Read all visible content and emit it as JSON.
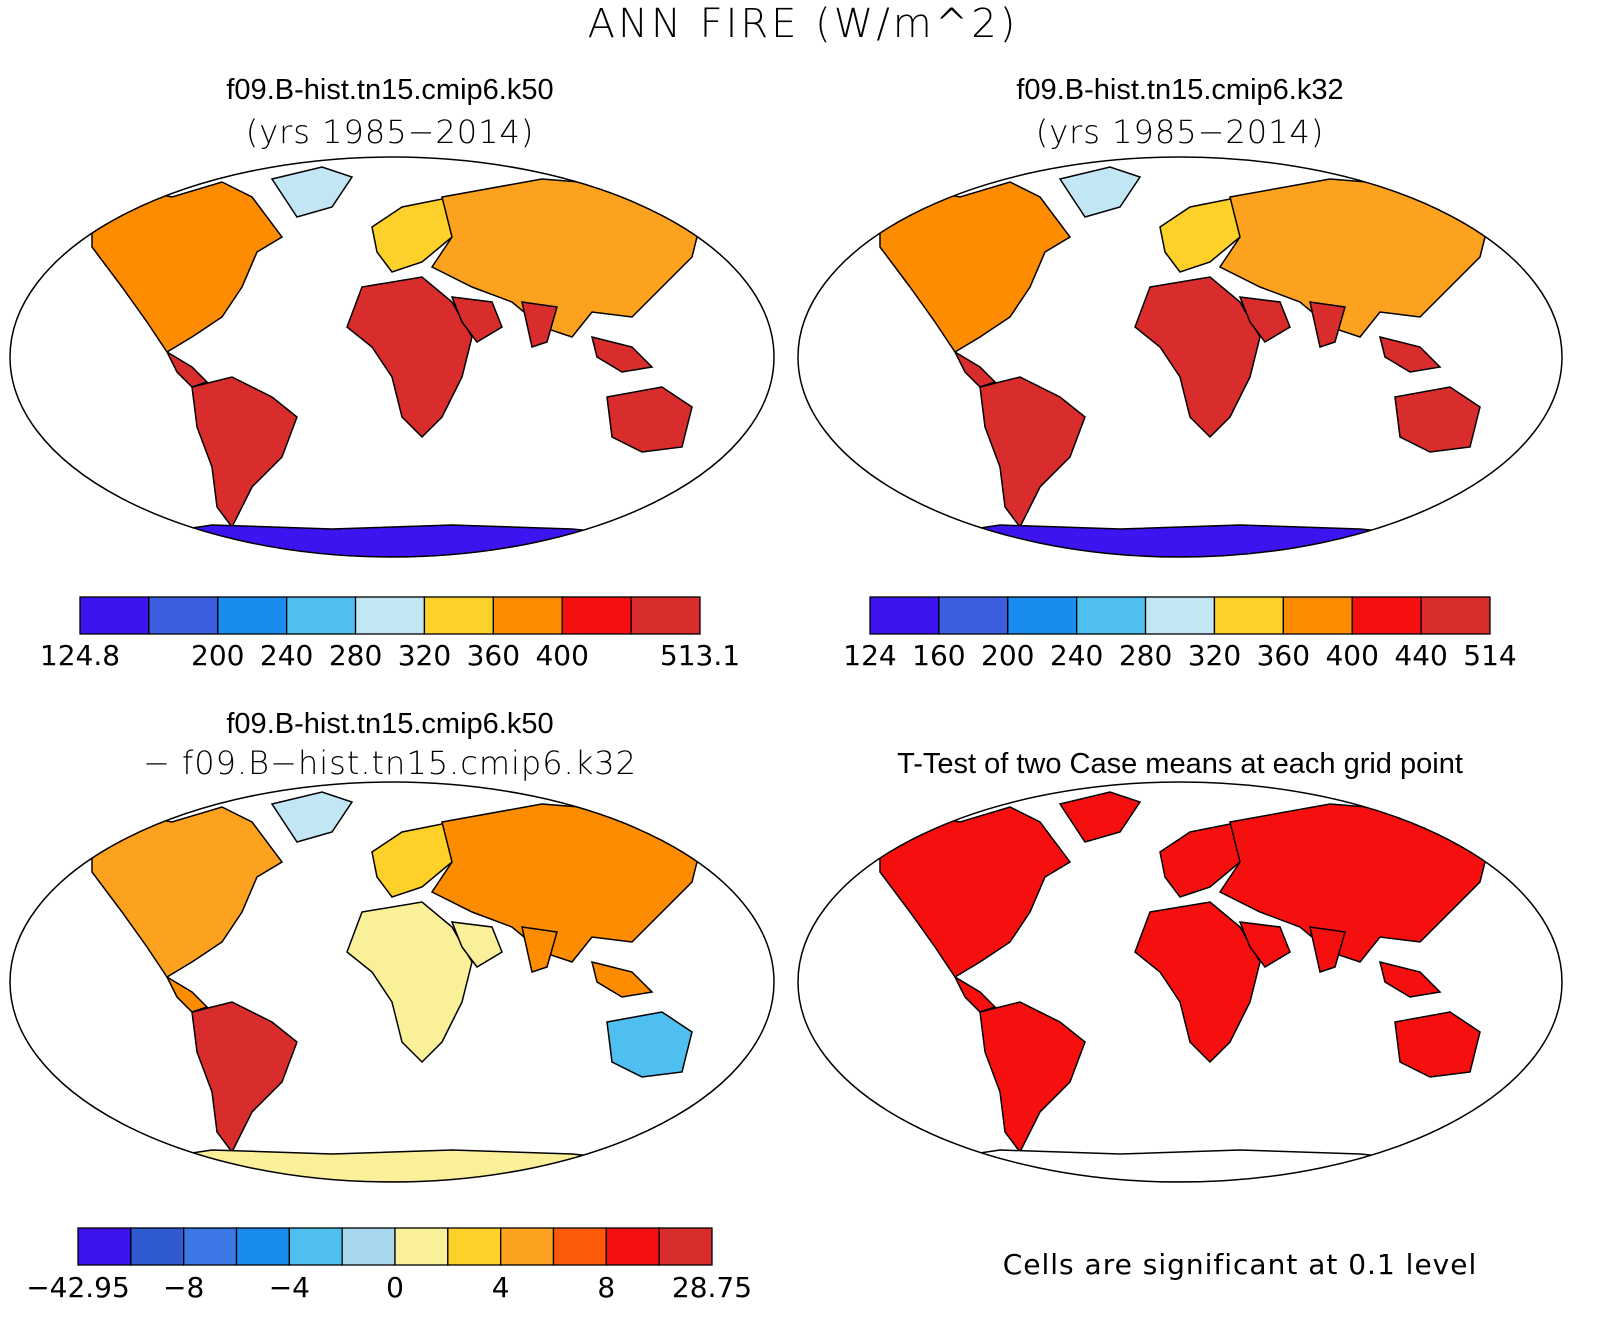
{
  "figure": {
    "title": "ANN FIRE (W/m^2)"
  },
  "panels": [
    {
      "id": "case1",
      "title": "f09.B-hist.tn15.cmip6.k50",
      "subtitle": "(yrs 1985−2014)",
      "colorbar": {
        "colors": [
          "#3d14f0",
          "#3c5ee0",
          "#1a8cf0",
          "#4fbff0",
          "#c3e6f5",
          "#fdd02a",
          "#fd8c00",
          "#f50f0f",
          "#d92d2d"
        ],
        "labels": [
          "124.8",
          "",
          "200",
          "240",
          "280",
          "320",
          "360",
          "400",
          "",
          "513.1"
        ]
      }
    },
    {
      "id": "case2",
      "title": "f09.B-hist.tn15.cmip6.k32",
      "subtitle": "(yrs 1985−2014)",
      "colorbar": {
        "colors": [
          "#3d14f0",
          "#3c5ee0",
          "#1a8cf0",
          "#4fbff0",
          "#c3e6f5",
          "#fdd02a",
          "#fd8c00",
          "#f50f0f",
          "#d92d2d"
        ],
        "labels": [
          "124",
          "160",
          "200",
          "240",
          "280",
          "320",
          "360",
          "400",
          "440",
          "514"
        ]
      }
    },
    {
      "id": "difference",
      "title": "f09.B-hist.tn15.cmip6.k50",
      "subtitle": "− f09.B−hist.tn15.cmip6.k32",
      "colorbar": {
        "colors": [
          "#3d14f0",
          "#2f5ad0",
          "#3c78e6",
          "#1a8cf0",
          "#4fbff0",
          "#a8d8ef",
          "#fbf09a",
          "#fdd02a",
          "#fda21e",
          "#fd5a0a",
          "#f50f0f",
          "#d92d2d"
        ],
        "labels": [
          "−42.95",
          "",
          "−8",
          "",
          "−4",
          "",
          "0",
          "",
          "4",
          "",
          "8",
          "",
          "28.75"
        ]
      }
    },
    {
      "id": "ttest",
      "title": "T-Test of two Case means at each grid point",
      "note": "Cells are significant at 0.1 level"
    }
  ],
  "colors": {
    "significant": "#f50f0f",
    "coastline": "#000000"
  }
}
